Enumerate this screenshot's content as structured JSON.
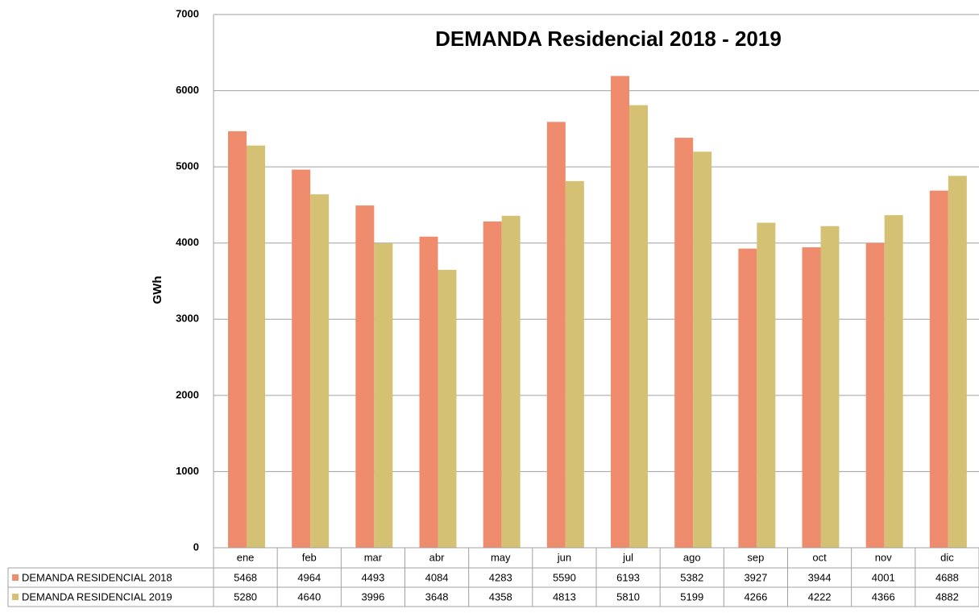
{
  "chart_data": {
    "type": "bar",
    "title": "DEMANDA Residencial  2018 - 2019",
    "y_label": "GWh",
    "categories": [
      "ene",
      "feb",
      "mar",
      "abr",
      "may",
      "jun",
      "jul",
      "ago",
      "sep",
      "oct",
      "nov",
      "dic"
    ],
    "series": [
      {
        "name": "DEMANDA RESIDENCIAL 2018",
        "color": "#f08c6e",
        "values": [
          5468,
          4964,
          4493,
          4084,
          4283,
          5590,
          6193,
          5382,
          3927,
          3944,
          4001,
          4688
        ]
      },
      {
        "name": "DEMANDA RESIDENCIAL 2019",
        "color": "#d4c173",
        "values": [
          5280,
          4640,
          3996,
          3648,
          4358,
          4813,
          5810,
          5199,
          4266,
          4222,
          4366,
          4882
        ]
      }
    ],
    "ylim": [
      0,
      7000
    ],
    "yticks": [
      0,
      1000,
      2000,
      3000,
      4000,
      5000,
      6000,
      7000
    ],
    "grid": true
  }
}
